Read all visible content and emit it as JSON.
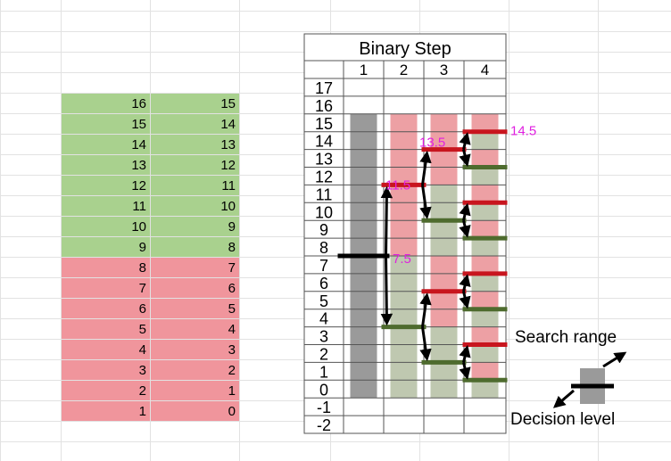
{
  "spreadsheet": {
    "rows": [
      {
        "a": "16",
        "b": "15",
        "zone": "upper"
      },
      {
        "a": "15",
        "b": "14",
        "zone": "upper"
      },
      {
        "a": "14",
        "b": "13",
        "zone": "upper"
      },
      {
        "a": "13",
        "b": "12",
        "zone": "upper"
      },
      {
        "a": "12",
        "b": "11",
        "zone": "upper"
      },
      {
        "a": "11",
        "b": "10",
        "zone": "upper"
      },
      {
        "a": "10",
        "b": "9",
        "zone": "upper"
      },
      {
        "a": "9",
        "b": "8",
        "zone": "upper"
      },
      {
        "a": "8",
        "b": "7",
        "zone": "lower"
      },
      {
        "a": "7",
        "b": "6",
        "zone": "lower"
      },
      {
        "a": "6",
        "b": "5",
        "zone": "lower"
      },
      {
        "a": "5",
        "b": "4",
        "zone": "lower"
      },
      {
        "a": "4",
        "b": "3",
        "zone": "lower"
      },
      {
        "a": "3",
        "b": "2",
        "zone": "lower"
      },
      {
        "a": "2",
        "b": "1",
        "zone": "lower"
      },
      {
        "a": "1",
        "b": "0",
        "zone": "lower"
      }
    ]
  },
  "diagram": {
    "title": "Binary Step",
    "step_headers": [
      "1",
      "2",
      "3",
      "4"
    ],
    "levels": [
      "17",
      "16",
      "15",
      "14",
      "13",
      "12",
      "11",
      "10",
      "9",
      "8",
      "7",
      "6",
      "5",
      "4",
      "3",
      "2",
      "1",
      "0",
      "-1",
      "-2"
    ],
    "decision_labels": [
      "7.5",
      "11.5",
      "13.5",
      "14.5"
    ],
    "colors": {
      "range_step1": "#9a9a9a",
      "upper_range": "#eda0a4",
      "lower_range": "#bfc8b0",
      "upper_decision": "#c8151e",
      "lower_decision": "#4e6b2e",
      "first_decision": "#000000",
      "value_label": "#e020e0",
      "sheet_green": "#a9d18e",
      "sheet_red": "#f0959c"
    }
  },
  "legend": {
    "search_range_label": "Search range",
    "decision_level_label": "Decision level"
  }
}
